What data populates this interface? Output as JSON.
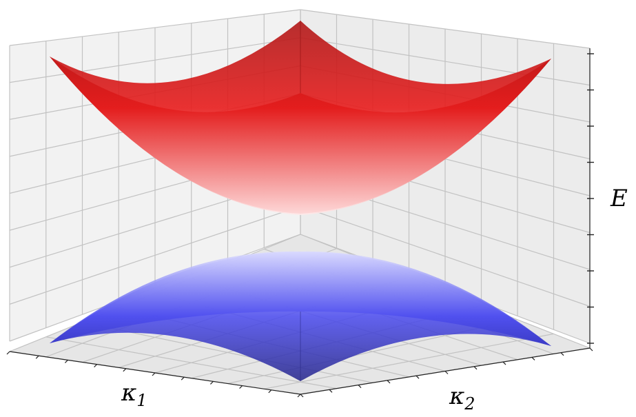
{
  "chart_data": {
    "type": "surface",
    "xlabel": {
      "symbol": "κ",
      "sub": "1"
    },
    "ylabel": {
      "symbol": "κ",
      "sub": "2"
    },
    "zlabel": "E",
    "grid": true,
    "tick_labels": false,
    "series": [
      {
        "color": "#e8202a",
        "shape": "upward cone-like band with rounded minimum"
      },
      {
        "color": "#2a2ae6",
        "shape": "downward mirrored band with rounded maximum"
      }
    ]
  }
}
